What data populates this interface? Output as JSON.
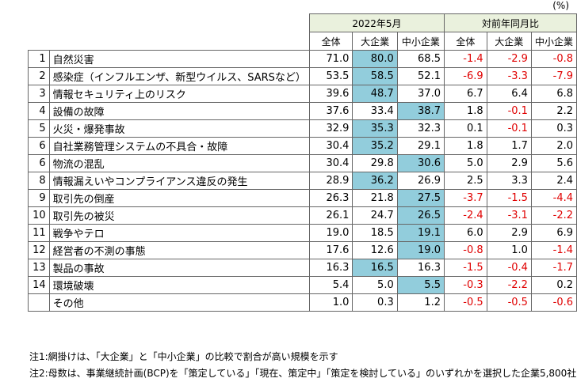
{
  "unit": "(%)",
  "header": {
    "group1": "2022年5月",
    "group2": "対前年同月比",
    "cols": [
      "全体",
      "大企業",
      "中小企業",
      "全体",
      "大企業",
      "中小企業"
    ]
  },
  "rows": [
    {
      "no": "1",
      "label": "自然災害",
      "values": [
        "71.0",
        "80.0",
        "68.5",
        "-1.4",
        "-2.9",
        "-0.8"
      ],
      "hl": [
        1
      ]
    },
    {
      "no": "2",
      "label": "感染症（インフルエンザ、新型ウイルス、SARSなど）",
      "values": [
        "53.5",
        "58.5",
        "52.1",
        "-6.9",
        "-3.3",
        "-7.9"
      ],
      "hl": [
        1
      ]
    },
    {
      "no": "3",
      "label": "情報セキュリティ上のリスク",
      "values": [
        "39.6",
        "48.7",
        "37.0",
        "6.7",
        "6.4",
        "6.8"
      ],
      "hl": [
        1
      ]
    },
    {
      "no": "4",
      "label": "設備の故障",
      "values": [
        "37.6",
        "33.4",
        "38.7",
        "1.8",
        "-0.1",
        "2.2"
      ],
      "hl": [
        2
      ]
    },
    {
      "no": "5",
      "label": "火災・爆発事故",
      "values": [
        "32.9",
        "35.3",
        "32.3",
        "0.1",
        "-0.1",
        "0.3"
      ],
      "hl": [
        1
      ]
    },
    {
      "no": "6",
      "label": "自社業務管理システムの不具合・故障",
      "values": [
        "30.4",
        "35.2",
        "29.1",
        "1.8",
        "1.7",
        "2.0"
      ],
      "hl": [
        1
      ]
    },
    {
      "no": "6",
      "label": "物流の混乱",
      "values": [
        "30.4",
        "29.8",
        "30.6",
        "5.0",
        "2.9",
        "5.6"
      ],
      "hl": [
        2
      ]
    },
    {
      "no": "8",
      "label": "情報漏えいやコンプライアンス違反の発生",
      "values": [
        "28.9",
        "36.2",
        "26.9",
        "2.5",
        "3.3",
        "2.4"
      ],
      "hl": [
        1
      ]
    },
    {
      "no": "9",
      "label": "取引先の倒産",
      "values": [
        "26.3",
        "21.8",
        "27.5",
        "-3.7",
        "-1.5",
        "-4.4"
      ],
      "hl": [
        2
      ]
    },
    {
      "no": "10",
      "label": "取引先の被災",
      "values": [
        "26.1",
        "24.7",
        "26.5",
        "-2.4",
        "-3.1",
        "-2.2"
      ],
      "hl": [
        2
      ]
    },
    {
      "no": "11",
      "label": "戦争やテロ",
      "values": [
        "19.0",
        "18.5",
        "19.1",
        "6.0",
        "2.9",
        "6.9"
      ],
      "hl": [
        2
      ]
    },
    {
      "no": "12",
      "label": "経営者の不測の事態",
      "values": [
        "17.6",
        "12.6",
        "19.0",
        "-0.8",
        "1.0",
        "-1.4"
      ],
      "hl": [
        2
      ]
    },
    {
      "no": "13",
      "label": "製品の事故",
      "values": [
        "16.3",
        "16.5",
        "16.3",
        "-1.5",
        "-0.4",
        "-1.7"
      ],
      "hl": [
        1
      ]
    },
    {
      "no": "14",
      "label": "環境破壊",
      "values": [
        "5.4",
        "5.0",
        "5.5",
        "-0.3",
        "-2.2",
        "0.2"
      ],
      "hl": [
        2
      ]
    },
    {
      "no": "",
      "label": "その他",
      "values": [
        "1.0",
        "0.3",
        "1.2",
        "-0.5",
        "-0.5",
        "-0.6"
      ],
      "hl": []
    }
  ],
  "notes": [
    "注1:網掛けは、「大企業」と「中小企業」の比較で割合が高い規模を示す",
    "注2:母数は、事業継続計画(BCP)を「策定している」「現在、策定中」「策定を検討している」のいずれかを選択した企業5,800社"
  ],
  "colors": {
    "highlight": "#92cddc",
    "header_group": "#eaf1dd",
    "negative": "#e00000"
  }
}
